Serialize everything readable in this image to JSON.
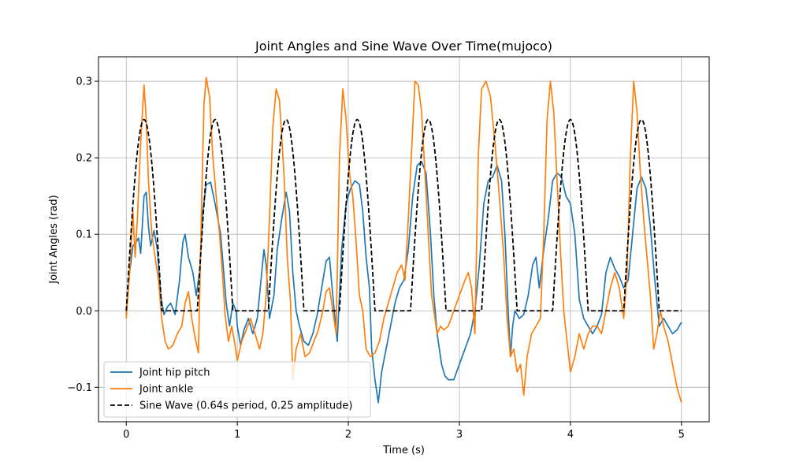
{
  "chart_data": {
    "type": "line",
    "title": "Joint Angles and Sine Wave Over Time(mujoco)",
    "xlabel": "Time (s)",
    "ylabel": "Joint Angles (rad)",
    "xlim": [
      -0.25,
      5.25
    ],
    "ylim": [
      -0.145,
      0.332
    ],
    "xticks": [
      0,
      1,
      2,
      3,
      4,
      5
    ],
    "xtick_labels": [
      "0",
      "1",
      "2",
      "3",
      "4",
      "5"
    ],
    "yticks": [
      -0.1,
      0.0,
      0.1,
      0.2,
      0.3
    ],
    "ytick_labels": [
      "−0.1",
      "0.0",
      "0.1",
      "0.2",
      "0.3"
    ],
    "grid": true,
    "legend_position": "lower-left",
    "series": [
      {
        "name": "Joint hip pitch",
        "color": "#1f77b4",
        "style": "solid",
        "points": [
          [
            0.0,
            -0.005
          ],
          [
            0.03,
            0.05
          ],
          [
            0.06,
            0.085
          ],
          [
            0.09,
            0.09
          ],
          [
            0.11,
            0.095
          ],
          [
            0.13,
            0.075
          ],
          [
            0.16,
            0.15
          ],
          [
            0.18,
            0.155
          ],
          [
            0.2,
            0.11
          ],
          [
            0.22,
            0.085
          ],
          [
            0.25,
            0.105
          ],
          [
            0.28,
            0.08
          ],
          [
            0.31,
            0.02
          ],
          [
            0.34,
            -0.005
          ],
          [
            0.37,
            0.005
          ],
          [
            0.4,
            0.01
          ],
          [
            0.44,
            -0.005
          ],
          [
            0.48,
            0.04
          ],
          [
            0.51,
            0.09
          ],
          [
            0.53,
            0.1
          ],
          [
            0.56,
            0.07
          ],
          [
            0.6,
            0.05
          ],
          [
            0.63,
            0.02
          ],
          [
            0.66,
            0.05
          ],
          [
            0.69,
            0.13
          ],
          [
            0.72,
            0.165
          ],
          [
            0.76,
            0.168
          ],
          [
            0.8,
            0.14
          ],
          [
            0.85,
            0.1
          ],
          [
            0.9,
            0.01
          ],
          [
            0.93,
            -0.02
          ],
          [
            0.96,
            0.01
          ],
          [
            0.99,
            0.0
          ],
          [
            1.0,
            -0.02
          ],
          [
            1.03,
            -0.045
          ],
          [
            1.06,
            -0.025
          ],
          [
            1.1,
            -0.01
          ],
          [
            1.14,
            -0.03
          ],
          [
            1.18,
            -0.01
          ],
          [
            1.22,
            0.05
          ],
          [
            1.24,
            0.08
          ],
          [
            1.26,
            0.06
          ],
          [
            1.29,
            -0.01
          ],
          [
            1.33,
            0.02
          ],
          [
            1.36,
            0.08
          ],
          [
            1.4,
            0.12
          ],
          [
            1.44,
            0.155
          ],
          [
            1.47,
            0.13
          ],
          [
            1.5,
            0.05
          ],
          [
            1.53,
            0.0
          ],
          [
            1.56,
            -0.02
          ],
          [
            1.6,
            -0.04
          ],
          [
            1.64,
            -0.045
          ],
          [
            1.68,
            -0.03
          ],
          [
            1.72,
            -0.005
          ],
          [
            1.76,
            0.03
          ],
          [
            1.8,
            0.065
          ],
          [
            1.83,
            0.07
          ],
          [
            1.86,
            0.02
          ],
          [
            1.9,
            -0.04
          ],
          [
            1.94,
            0.08
          ],
          [
            1.98,
            0.14
          ],
          [
            2.02,
            0.16
          ],
          [
            2.06,
            0.17
          ],
          [
            2.1,
            0.165
          ],
          [
            2.13,
            0.13
          ],
          [
            2.16,
            0.07
          ],
          [
            2.19,
            0.03
          ],
          [
            2.21,
            -0.05
          ],
          [
            2.24,
            -0.09
          ],
          [
            2.27,
            -0.12
          ],
          [
            2.3,
            -0.08
          ],
          [
            2.34,
            -0.05
          ],
          [
            2.38,
            -0.02
          ],
          [
            2.42,
            0.01
          ],
          [
            2.46,
            0.03
          ],
          [
            2.5,
            0.04
          ],
          [
            2.54,
            0.08
          ],
          [
            2.58,
            0.15
          ],
          [
            2.62,
            0.19
          ],
          [
            2.66,
            0.195
          ],
          [
            2.7,
            0.18
          ],
          [
            2.74,
            0.1
          ],
          [
            2.77,
            0.02
          ],
          [
            2.8,
            -0.03
          ],
          [
            2.84,
            -0.07
          ],
          [
            2.87,
            -0.085
          ],
          [
            2.9,
            -0.09
          ],
          [
            2.95,
            -0.09
          ],
          [
            3.0,
            -0.07
          ],
          [
            3.05,
            -0.05
          ],
          [
            3.1,
            -0.03
          ],
          [
            3.14,
            0.0
          ],
          [
            3.18,
            0.06
          ],
          [
            3.22,
            0.14
          ],
          [
            3.26,
            0.17
          ],
          [
            3.3,
            0.175
          ],
          [
            3.34,
            0.19
          ],
          [
            3.38,
            0.17
          ],
          [
            3.41,
            0.1
          ],
          [
            3.44,
            0.0
          ],
          [
            3.46,
            -0.06
          ],
          [
            3.48,
            -0.02
          ],
          [
            3.5,
            0.0
          ],
          [
            3.54,
            -0.01
          ],
          [
            3.58,
            -0.005
          ],
          [
            3.62,
            0.02
          ],
          [
            3.66,
            0.06
          ],
          [
            3.69,
            0.07
          ],
          [
            3.72,
            0.03
          ],
          [
            3.76,
            0.08
          ],
          [
            3.8,
            0.12
          ],
          [
            3.84,
            0.17
          ],
          [
            3.88,
            0.18
          ],
          [
            3.92,
            0.175
          ],
          [
            3.96,
            0.15
          ],
          [
            4.0,
            0.14
          ],
          [
            4.04,
            0.1
          ],
          [
            4.08,
            0.015
          ],
          [
            4.12,
            -0.01
          ],
          [
            4.16,
            -0.02
          ],
          [
            4.2,
            -0.03
          ],
          [
            4.24,
            -0.02
          ],
          [
            4.28,
            -0.005
          ],
          [
            4.32,
            0.05
          ],
          [
            4.36,
            0.07
          ],
          [
            4.4,
            0.055
          ],
          [
            4.44,
            0.045
          ],
          [
            4.48,
            0.03
          ],
          [
            4.52,
            0.04
          ],
          [
            4.56,
            0.1
          ],
          [
            4.6,
            0.16
          ],
          [
            4.64,
            0.175
          ],
          [
            4.68,
            0.16
          ],
          [
            4.72,
            0.11
          ],
          [
            4.76,
            0.04
          ],
          [
            4.8,
            -0.02
          ],
          [
            4.84,
            -0.01
          ],
          [
            4.88,
            -0.02
          ],
          [
            4.92,
            -0.03
          ],
          [
            4.96,
            -0.025
          ],
          [
            5.0,
            -0.015
          ]
        ]
      },
      {
        "name": "Joint ankle",
        "color": "#ff7f0e",
        "style": "solid",
        "points": [
          [
            0.0,
            -0.01
          ],
          [
            0.03,
            0.05
          ],
          [
            0.06,
            0.13
          ],
          [
            0.08,
            0.07
          ],
          [
            0.1,
            0.12
          ],
          [
            0.13,
            0.22
          ],
          [
            0.16,
            0.295
          ],
          [
            0.18,
            0.25
          ],
          [
            0.2,
            0.17
          ],
          [
            0.23,
            0.1
          ],
          [
            0.26,
            0.07
          ],
          [
            0.29,
            0.04
          ],
          [
            0.32,
            -0.01
          ],
          [
            0.35,
            -0.04
          ],
          [
            0.38,
            -0.05
          ],
          [
            0.42,
            -0.045
          ],
          [
            0.46,
            -0.03
          ],
          [
            0.5,
            -0.02
          ],
          [
            0.53,
            0.01
          ],
          [
            0.56,
            0.025
          ],
          [
            0.59,
            -0.01
          ],
          [
            0.62,
            -0.035
          ],
          [
            0.65,
            -0.055
          ],
          [
            0.68,
            0.15
          ],
          [
            0.7,
            0.27
          ],
          [
            0.72,
            0.305
          ],
          [
            0.75,
            0.28
          ],
          [
            0.78,
            0.2
          ],
          [
            0.81,
            0.15
          ],
          [
            0.84,
            0.1
          ],
          [
            0.87,
            0.04
          ],
          [
            0.89,
            -0.005
          ],
          [
            0.92,
            -0.04
          ],
          [
            0.95,
            -0.02
          ],
          [
            0.98,
            -0.045
          ],
          [
            1.0,
            -0.065
          ],
          [
            1.04,
            -0.04
          ],
          [
            1.08,
            -0.025
          ],
          [
            1.12,
            -0.01
          ],
          [
            1.16,
            -0.03
          ],
          [
            1.2,
            -0.05
          ],
          [
            1.23,
            -0.03
          ],
          [
            1.26,
            0.02
          ],
          [
            1.29,
            0.12
          ],
          [
            1.32,
            0.24
          ],
          [
            1.35,
            0.29
          ],
          [
            1.38,
            0.275
          ],
          [
            1.42,
            0.18
          ],
          [
            1.45,
            0.07
          ],
          [
            1.48,
            0.01
          ],
          [
            1.5,
            -0.09
          ],
          [
            1.53,
            -0.05
          ],
          [
            1.57,
            -0.03
          ],
          [
            1.61,
            -0.06
          ],
          [
            1.65,
            -0.055
          ],
          [
            1.69,
            -0.04
          ],
          [
            1.73,
            -0.025
          ],
          [
            1.77,
            0.0
          ],
          [
            1.8,
            0.025
          ],
          [
            1.83,
            0.03
          ],
          [
            1.86,
            0.0
          ],
          [
            1.89,
            -0.03
          ],
          [
            1.92,
            0.2
          ],
          [
            1.95,
            0.29
          ],
          [
            1.98,
            0.25
          ],
          [
            2.01,
            0.18
          ],
          [
            2.04,
            0.15
          ],
          [
            2.07,
            0.09
          ],
          [
            2.1,
            0.02
          ],
          [
            2.13,
            0.0
          ],
          [
            2.16,
            -0.05
          ],
          [
            2.2,
            -0.06
          ],
          [
            2.24,
            -0.055
          ],
          [
            2.28,
            -0.04
          ],
          [
            2.32,
            -0.01
          ],
          [
            2.36,
            0.01
          ],
          [
            2.4,
            0.03
          ],
          [
            2.44,
            0.05
          ],
          [
            2.48,
            0.06
          ],
          [
            2.51,
            0.04
          ],
          [
            2.54,
            0.12
          ],
          [
            2.57,
            0.21
          ],
          [
            2.6,
            0.3
          ],
          [
            2.63,
            0.295
          ],
          [
            2.66,
            0.26
          ],
          [
            2.69,
            0.18
          ],
          [
            2.72,
            0.1
          ],
          [
            2.75,
            0.02
          ],
          [
            2.78,
            -0.01
          ],
          [
            2.8,
            -0.03
          ],
          [
            2.83,
            -0.02
          ],
          [
            2.86,
            -0.025
          ],
          [
            2.9,
            -0.02
          ],
          [
            2.95,
            0.0
          ],
          [
            3.0,
            0.02
          ],
          [
            3.05,
            0.04
          ],
          [
            3.08,
            0.05
          ],
          [
            3.11,
            0.03
          ],
          [
            3.14,
            -0.03
          ],
          [
            3.17,
            0.2
          ],
          [
            3.2,
            0.29
          ],
          [
            3.24,
            0.3
          ],
          [
            3.28,
            0.28
          ],
          [
            3.32,
            0.22
          ],
          [
            3.36,
            0.15
          ],
          [
            3.4,
            0.07
          ],
          [
            3.43,
            -0.01
          ],
          [
            3.46,
            -0.06
          ],
          [
            3.49,
            -0.05
          ],
          [
            3.52,
            -0.08
          ],
          [
            3.55,
            -0.07
          ],
          [
            3.58,
            -0.11
          ],
          [
            3.61,
            -0.06
          ],
          [
            3.65,
            -0.03
          ],
          [
            3.69,
            -0.02
          ],
          [
            3.73,
            -0.01
          ],
          [
            3.76,
            0.1
          ],
          [
            3.79,
            0.25
          ],
          [
            3.82,
            0.3
          ],
          [
            3.85,
            0.26
          ],
          [
            3.88,
            0.17
          ],
          [
            3.91,
            0.08
          ],
          [
            3.94,
            0.0
          ],
          [
            3.97,
            -0.04
          ],
          [
            4.0,
            -0.08
          ],
          [
            4.04,
            -0.06
          ],
          [
            4.08,
            -0.03
          ],
          [
            4.12,
            -0.05
          ],
          [
            4.16,
            -0.03
          ],
          [
            4.2,
            -0.02
          ],
          [
            4.24,
            -0.02
          ],
          [
            4.28,
            -0.03
          ],
          [
            4.32,
            0.0
          ],
          [
            4.36,
            0.03
          ],
          [
            4.4,
            0.05
          ],
          [
            4.44,
            0.03
          ],
          [
            4.48,
            -0.01
          ],
          [
            4.51,
            0.05
          ],
          [
            4.54,
            0.2
          ],
          [
            4.57,
            0.3
          ],
          [
            4.6,
            0.26
          ],
          [
            4.63,
            0.18
          ],
          [
            4.66,
            0.12
          ],
          [
            4.69,
            0.07
          ],
          [
            4.72,
            0.02
          ],
          [
            4.75,
            -0.05
          ],
          [
            4.78,
            -0.03
          ],
          [
            4.81,
            0.0
          ],
          [
            4.84,
            -0.02
          ],
          [
            4.88,
            -0.04
          ],
          [
            4.92,
            -0.07
          ],
          [
            4.96,
            -0.1
          ],
          [
            5.0,
            -0.12
          ]
        ]
      },
      {
        "name": "Sine Wave (0.64s period, 0.25 amplitude)",
        "color": "#000000",
        "style": "dashed",
        "function": "max(0, 0.25*sin(2*pi*t/0.64))",
        "cycle_starts": [
          0.0,
          0.64,
          1.28,
          1.92,
          2.56,
          3.2,
          3.84,
          4.48
        ],
        "period": 0.64,
        "amplitude": 0.25,
        "positive_half_period": 0.32,
        "x_range": [
          0,
          5
        ]
      }
    ]
  }
}
